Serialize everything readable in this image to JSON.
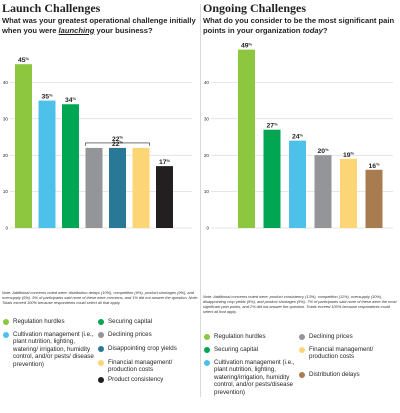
{
  "colors": {
    "regulation": "#8dc63f",
    "cultivation": "#4dc1ea",
    "securing_capital": "#00a651",
    "declining_prices": "#939598",
    "crop_yields": "#2a7897",
    "financial": "#fcd576",
    "product_consistency": "#231f20",
    "distribution": "#a97c50",
    "gridline": "#cccccc"
  },
  "left": {
    "title": "Launch Challenges",
    "question_before": "What was your greatest operational challenge initially when you were ",
    "question_emph": "launching",
    "question_after": " your business?",
    "note": "Note: Additional concerns noted were: distribution delays (10%), competition (9%), product shortages (9%), and oversupply (6%). 5% of participants said none of these were concerns, and 1% did not answer the question. Note: Totals exceed 100% because respondents could select all that apply.",
    "legend": [
      {
        "label": "Regulation hurdles",
        "color_key": "regulation"
      },
      {
        "label": "Securing capital",
        "color_key": "securing_capital"
      },
      {
        "label": "Cultivation management (i.e., plant nutrition, lighting, watering/ irrigation, humidity control, and/or pests/ disease prevention)",
        "color_key": "cultivation"
      },
      {
        "label": "Declining prices",
        "color_key": "declining_prices"
      },
      {
        "label": "Disappointing crop yields",
        "color_key": "crop_yields"
      },
      {
        "label": "Financial management/ production costs",
        "color_key": "financial"
      },
      {
        "label": "Product consistency",
        "color_key": "product_consistency"
      }
    ]
  },
  "right": {
    "title": "Ongoing Challenges",
    "question_before": "What do you consider to be the most significant pain points in your organization ",
    "question_emph": "today",
    "question_after": "?",
    "note": "Note: Additional concerns noted were: product consistency (13%), competition (11%), oversupply (10%), disappointing crop yields (9%), and product shortages (9%). 7% of participants said none of these were the most significant pain points, and 2% did not answer the question. Totals exceed 100% because respondents could select all that apply.",
    "legend": [
      {
        "label": "Regulation hurdles",
        "color_key": "regulation"
      },
      {
        "label": "Declining prices",
        "color_key": "declining_prices"
      },
      {
        "label": "Securing capital",
        "color_key": "securing_capital"
      },
      {
        "label": "Financial management/ production costs",
        "color_key": "financial"
      },
      {
        "label": "Cultivation management (i.e., plant nutrition, lighting, watering/irrigation, humidity control, and/or pests/disease prevention)",
        "color_key": "cultivation"
      },
      {
        "label": "Distribution delays",
        "color_key": "distribution"
      }
    ]
  },
  "chart_data": [
    {
      "type": "bar",
      "title": "Launch Challenges",
      "categories": [
        "Regulation hurdles",
        "Cultivation management",
        "Securing capital",
        "Declining prices",
        "Disappointing crop yields",
        "Financial management/ production costs",
        "Product consistency"
      ],
      "values": [
        45,
        35,
        34,
        22,
        22,
        22,
        17
      ],
      "bar_colors": [
        "regulation",
        "cultivation",
        "securing_capital",
        "declining_prices",
        "crop_yields",
        "financial",
        "product_consistency"
      ],
      "value_labels": [
        {
          "value": "45",
          "unit": "%"
        },
        {
          "value": "35",
          "unit": "%"
        },
        {
          "value": "34",
          "unit": "%"
        },
        {
          "value": "",
          "unit": ""
        },
        {
          "value": "22",
          "unit": "%"
        },
        {
          "value": "",
          "unit": ""
        },
        {
          "value": "17",
          "unit": "%"
        }
      ],
      "ylim": [
        0,
        50
      ],
      "yticks": [
        0,
        10,
        20,
        30,
        40
      ],
      "grid": true
    },
    {
      "type": "bar",
      "title": "Ongoing Challenges",
      "categories": [
        "Regulation hurdles",
        "Securing capital",
        "Cultivation management",
        "Declining prices",
        "Financial management/ production costs",
        "Distribution delays"
      ],
      "values": [
        49,
        27,
        24,
        20,
        19,
        16
      ],
      "bar_colors": [
        "regulation",
        "securing_capital",
        "cultivation",
        "declining_prices",
        "financial",
        "distribution"
      ],
      "value_labels": [
        {
          "value": "49",
          "unit": "%"
        },
        {
          "value": "27",
          "unit": "%"
        },
        {
          "value": "24",
          "unit": "%"
        },
        {
          "value": "20",
          "unit": "%"
        },
        {
          "value": "19",
          "unit": "%"
        },
        {
          "value": "16",
          "unit": "%"
        }
      ],
      "ylim": [
        0,
        50
      ],
      "yticks": [
        0,
        10,
        20,
        30,
        40
      ],
      "grid": true
    }
  ]
}
